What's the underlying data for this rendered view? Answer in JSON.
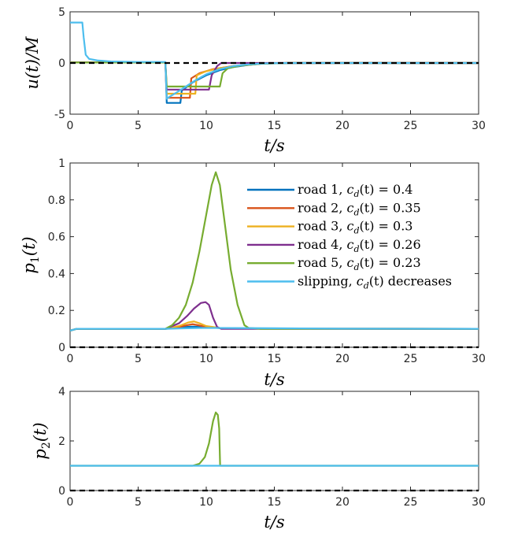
{
  "chart_data": [
    {
      "type": "line",
      "panel": "top",
      "xlabel": "t/s",
      "ylabel": "u(t)/M",
      "xlim": [
        0,
        30
      ],
      "ylim": [
        -5,
        5
      ],
      "xticks": [
        "0",
        "5",
        "10",
        "15",
        "20",
        "25",
        "30"
      ],
      "yticks": [
        "5",
        "0",
        "-5"
      ],
      "reference_line": {
        "y": 0,
        "style": "dashed",
        "color": "#000000"
      },
      "series": [
        {
          "name": "road 1",
          "color": "#0072BD",
          "points": [
            [
              0,
              0.05
            ],
            [
              7,
              0.05
            ],
            [
              7.1,
              -3.9
            ],
            [
              8.1,
              -3.9
            ],
            [
              8.2,
              -2.7
            ],
            [
              9,
              -1.9
            ],
            [
              10,
              -1.2
            ],
            [
              11,
              -0.7
            ],
            [
              12,
              -0.4
            ],
            [
              13,
              -0.2
            ],
            [
              14,
              -0.08
            ],
            [
              15,
              -0.02
            ],
            [
              16,
              0
            ],
            [
              30,
              0
            ]
          ]
        },
        {
          "name": "road 2",
          "color": "#D95319",
          "points": [
            [
              0,
              0.05
            ],
            [
              7,
              0.05
            ],
            [
              7.1,
              -3.4
            ],
            [
              8.8,
              -3.4
            ],
            [
              8.9,
              -1.5
            ],
            [
              9.5,
              -1.0
            ],
            [
              10.5,
              -0.6
            ],
            [
              12,
              -0.3
            ],
            [
              14,
              -0.06
            ],
            [
              16,
              0
            ],
            [
              30,
              0
            ]
          ]
        },
        {
          "name": "road 3",
          "color": "#EDB120",
          "points": [
            [
              0,
              0.05
            ],
            [
              7,
              0.05
            ],
            [
              7.1,
              -3.0
            ],
            [
              9.2,
              -3.0
            ],
            [
              9.3,
              -1.2
            ],
            [
              10,
              -0.8
            ],
            [
              11,
              -0.5
            ],
            [
              12.5,
              -0.25
            ],
            [
              14,
              -0.07
            ],
            [
              16,
              0
            ],
            [
              30,
              0
            ]
          ]
        },
        {
          "name": "road 4",
          "color": "#7E2F8E",
          "points": [
            [
              0,
              0.05
            ],
            [
              7,
              0.05
            ],
            [
              7.1,
              -2.6
            ],
            [
              10.2,
              -2.6
            ],
            [
              10.4,
              -1.2
            ],
            [
              10.8,
              -0.3
            ],
            [
              11.1,
              0
            ],
            [
              30,
              0
            ]
          ]
        },
        {
          "name": "road 5",
          "color": "#77AC30",
          "points": [
            [
              0,
              0.05
            ],
            [
              7,
              0.05
            ],
            [
              7.1,
              -2.3
            ],
            [
              11,
              -2.3
            ],
            [
              11.2,
              -1.0
            ],
            [
              11.6,
              -0.5
            ],
            [
              12.5,
              -0.25
            ],
            [
              14,
              -0.07
            ],
            [
              16,
              0
            ],
            [
              30,
              0
            ]
          ]
        },
        {
          "name": "slipping",
          "color": "#4DBEEE",
          "points": [
            [
              0,
              3.95
            ],
            [
              0.9,
              3.95
            ],
            [
              1.0,
              2.5
            ],
            [
              1.15,
              0.8
            ],
            [
              1.4,
              0.4
            ],
            [
              2,
              0.25
            ],
            [
              3,
              0.15
            ],
            [
              5,
              0.1
            ],
            [
              7,
              0.1
            ],
            [
              7.1,
              -3.5
            ],
            [
              7.3,
              -3.3
            ],
            [
              7.8,
              -2.9
            ],
            [
              8.5,
              -2.3
            ],
            [
              9.2,
              -1.7
            ],
            [
              10,
              -1.1
            ],
            [
              11,
              -0.6
            ],
            [
              12,
              -0.3
            ],
            [
              13,
              -0.15
            ],
            [
              14,
              -0.06
            ],
            [
              15.5,
              -0.01
            ],
            [
              17,
              0
            ],
            [
              30,
              0
            ]
          ]
        }
      ]
    },
    {
      "type": "line",
      "panel": "middle",
      "xlabel": "t/s",
      "ylabel": "p1(t)",
      "xlim": [
        0,
        30
      ],
      "ylim": [
        0,
        1
      ],
      "xticks": [
        "0",
        "5",
        "10",
        "15",
        "20",
        "25",
        "30"
      ],
      "yticks": [
        "1",
        "0.8",
        "0.6",
        "0.4",
        "0.2",
        "0"
      ],
      "reference_line": {
        "y": 0,
        "style": "dashed",
        "color": "#000000"
      },
      "legend": {
        "placement": "top-right",
        "entries": [
          {
            "label": "road 1, c_d(t) = 0.4",
            "color": "#0072BD"
          },
          {
            "label": "road 2, c_d(t) = 0.35",
            "color": "#D95319"
          },
          {
            "label": "road 3, c_d(t) = 0.3",
            "color": "#EDB120"
          },
          {
            "label": "road 4, c_d(t) = 0.26",
            "color": "#7E2F8E"
          },
          {
            "label": "road 5, c_d(t) = 0.23",
            "color": "#77AC30"
          },
          {
            "label": "slipping, c_d(t) decreases",
            "color": "#4DBEEE"
          }
        ]
      },
      "series": [
        {
          "name": "road 1",
          "color": "#0072BD",
          "points": [
            [
              0,
              0.09
            ],
            [
              0.5,
              0.1
            ],
            [
              7,
              0.1
            ],
            [
              8,
              0.105
            ],
            [
              8.5,
              0.11
            ],
            [
              9,
              0.112
            ],
            [
              10,
              0.108
            ],
            [
              11,
              0.104
            ],
            [
              13,
              0.101
            ],
            [
              30,
              0.1
            ]
          ]
        },
        {
          "name": "road 2",
          "color": "#D95319",
          "points": [
            [
              0,
              0.09
            ],
            [
              0.5,
              0.1
            ],
            [
              7,
              0.1
            ],
            [
              8,
              0.11
            ],
            [
              8.6,
              0.12
            ],
            [
              9,
              0.125
            ],
            [
              9.5,
              0.118
            ],
            [
              10,
              0.11
            ],
            [
              11,
              0.104
            ],
            [
              13,
              0.101
            ],
            [
              30,
              0.1
            ]
          ]
        },
        {
          "name": "road 3",
          "color": "#EDB120",
          "points": [
            [
              0,
              0.09
            ],
            [
              0.5,
              0.1
            ],
            [
              7,
              0.1
            ],
            [
              8,
              0.115
            ],
            [
              8.7,
              0.135
            ],
            [
              9.1,
              0.14
            ],
            [
              9.5,
              0.13
            ],
            [
              10,
              0.115
            ],
            [
              11,
              0.105
            ],
            [
              13,
              0.101
            ],
            [
              30,
              0.1
            ]
          ]
        },
        {
          "name": "road 4",
          "color": "#7E2F8E",
          "points": [
            [
              0,
              0.09
            ],
            [
              0.5,
              0.1
            ],
            [
              7,
              0.1
            ],
            [
              8,
              0.13
            ],
            [
              8.6,
              0.17
            ],
            [
              9.1,
              0.21
            ],
            [
              9.6,
              0.24
            ],
            [
              9.95,
              0.245
            ],
            [
              10.2,
              0.23
            ],
            [
              10.5,
              0.16
            ],
            [
              10.8,
              0.11
            ],
            [
              11.1,
              0.1
            ],
            [
              30,
              0.1
            ]
          ]
        },
        {
          "name": "road 5",
          "color": "#77AC30",
          "points": [
            [
              0,
              0.09
            ],
            [
              0.5,
              0.1
            ],
            [
              7,
              0.1
            ],
            [
              7.5,
              0.12
            ],
            [
              8,
              0.16
            ],
            [
              8.5,
              0.23
            ],
            [
              9,
              0.35
            ],
            [
              9.5,
              0.52
            ],
            [
              10,
              0.72
            ],
            [
              10.4,
              0.88
            ],
            [
              10.7,
              0.95
            ],
            [
              11,
              0.88
            ],
            [
              11.4,
              0.65
            ],
            [
              11.8,
              0.42
            ],
            [
              12.3,
              0.23
            ],
            [
              12.8,
              0.12
            ],
            [
              13.1,
              0.105
            ],
            [
              14,
              0.1
            ],
            [
              30,
              0.1
            ]
          ]
        },
        {
          "name": "slipping",
          "color": "#4DBEEE",
          "points": [
            [
              0,
              0.09
            ],
            [
              0.5,
              0.1
            ],
            [
              7,
              0.1
            ],
            [
              8,
              0.102
            ],
            [
              10,
              0.105
            ],
            [
              12,
              0.104
            ],
            [
              15,
              0.103
            ],
            [
              20,
              0.101
            ],
            [
              30,
              0.1
            ]
          ]
        }
      ]
    },
    {
      "type": "line",
      "panel": "bottom",
      "xlabel": "t/s",
      "ylabel": "p2(t)",
      "xlim": [
        0,
        30
      ],
      "ylim": [
        0,
        4
      ],
      "xticks": [
        "0",
        "5",
        "10",
        "15",
        "20",
        "25",
        "30"
      ],
      "yticks": [
        "4",
        "2",
        "0"
      ],
      "reference_line": {
        "y": 0,
        "style": "dashed",
        "color": "#000000"
      },
      "series": [
        {
          "name": "road 5",
          "color": "#77AC30",
          "points": [
            [
              0,
              1
            ],
            [
              9,
              1
            ],
            [
              9.5,
              1.08
            ],
            [
              9.9,
              1.35
            ],
            [
              10.2,
              1.9
            ],
            [
              10.5,
              2.8
            ],
            [
              10.7,
              3.15
            ],
            [
              10.85,
              3.05
            ],
            [
              10.95,
              2.5
            ],
            [
              11,
              1.4
            ],
            [
              11.02,
              1
            ],
            [
              30,
              1
            ]
          ]
        },
        {
          "name": "slipping",
          "color": "#4DBEEE",
          "points": [
            [
              0,
              1
            ],
            [
              30,
              1
            ]
          ]
        }
      ]
    }
  ]
}
